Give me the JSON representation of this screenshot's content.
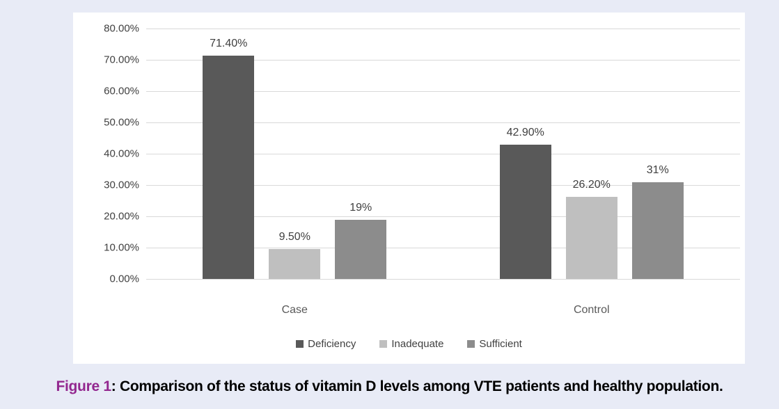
{
  "page": {
    "background_color": "#e8ebf6",
    "panel_color": "#ffffff"
  },
  "caption": {
    "prefix": "Figure 1",
    "separator": ": ",
    "text": "Comparison of the status of vitamin D levels among VTE patients and healthy population.",
    "prefix_color": "#93278f",
    "text_color": "#000000"
  },
  "chart_data": {
    "type": "bar",
    "title": "",
    "xlabel": "",
    "ylabel": "",
    "categories": [
      "Case",
      "Control"
    ],
    "series": [
      {
        "name": "Deficiency",
        "color": "#595959",
        "values": [
          71.4,
          42.9
        ],
        "labels": [
          "71.40%",
          "42.90%"
        ]
      },
      {
        "name": "Inadequate",
        "color": "#bfbfbf",
        "values": [
          9.5,
          26.2
        ],
        "labels": [
          "9.50%",
          "26.20%"
        ]
      },
      {
        "name": "Sufficient",
        "color": "#8c8c8c",
        "values": [
          19,
          31
        ],
        "labels": [
          "19%",
          "31%"
        ]
      }
    ],
    "ylim": [
      0,
      80
    ],
    "yticks": [
      {
        "value": 80,
        "label": "80.00%"
      },
      {
        "value": 70,
        "label": "70.00%"
      },
      {
        "value": 60,
        "label": "60.00%"
      },
      {
        "value": 50,
        "label": "50.00%"
      },
      {
        "value": 40,
        "label": "40.00%"
      },
      {
        "value": 30,
        "label": "30.00%"
      },
      {
        "value": 20,
        "label": "20.00%"
      },
      {
        "value": 10,
        "label": "10.00%"
      },
      {
        "value": 0,
        "label": "0.00%"
      }
    ],
    "grid": true,
    "gridline_color": "#d9d9d9",
    "text_color": "#404040",
    "legend_position": "bottom"
  }
}
